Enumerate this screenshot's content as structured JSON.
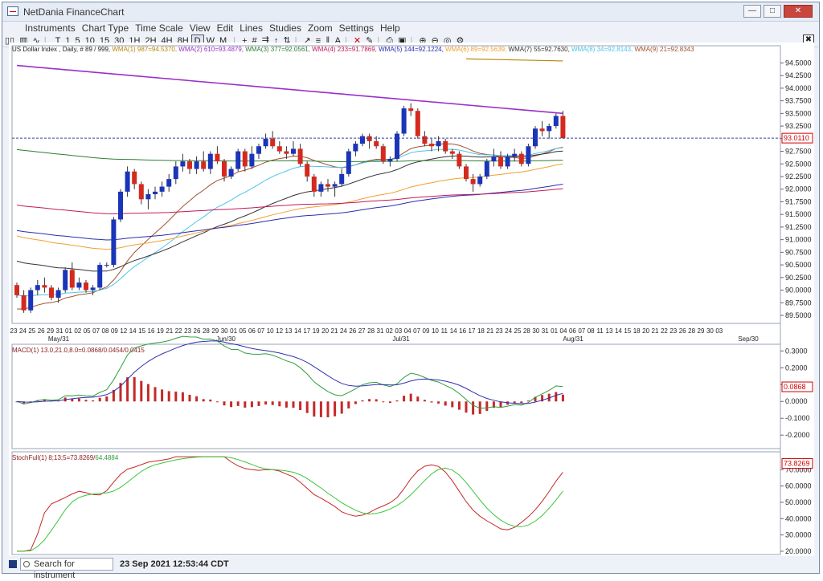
{
  "window": {
    "title": "NetDania FinanceChart"
  },
  "menu": [
    "Instruments",
    "Chart Type",
    "Time Scale",
    "View",
    "Edit",
    "Lines",
    "Studies",
    "Zoom",
    "Settings",
    "Help"
  ],
  "toolbar": [
    "T",
    "1",
    "5",
    "10",
    "15",
    "30",
    "1H",
    "2H",
    "4H",
    "8H",
    "D",
    "W",
    "M"
  ],
  "toolbar_selected": "D",
  "main_legend": {
    "instrument": "US Dollar Index , Daily, # 89 / 999,",
    "items": [
      {
        "text": "WMA(1) 987=94.5370,",
        "color": "#b8860b"
      },
      {
        "text": "WMA(2) 610=93.4879,",
        "color": "#9b30c8"
      },
      {
        "text": "WMA(3) 377=92.0561,",
        "color": "#2e7d32"
      },
      {
        "text": "WMA(4) 233=91.7869,",
        "color": "#c2185b"
      },
      {
        "text": "WMA(5) 144=92.1224,",
        "color": "#2b2bb0"
      },
      {
        "text": "WMA(6) 89=92.5639,",
        "color": "#f0a030"
      },
      {
        "text": "WMA(7) 55=92.7630,",
        "color": "#333333"
      },
      {
        "text": "WMA(8) 34=92.8143,",
        "color": "#4fc3e8"
      },
      {
        "text": "WMA(9) 21=92.8343",
        "color": "#a0522d"
      }
    ]
  },
  "price_axis": {
    "labels": [
      "94.5000",
      "94.2500",
      "94.0000",
      "93.7500",
      "93.5000",
      "93.2500",
      "93.0000",
      "92.7500",
      "92.5000",
      "92.2500",
      "92.0000",
      "91.7500",
      "91.5000",
      "91.2500",
      "91.0000",
      "90.7500",
      "90.5000",
      "90.2500",
      "90.0000",
      "89.7500",
      "89.5000"
    ],
    "current": "93.0110"
  },
  "date_axis": {
    "days": [
      "23",
      "24",
      "25",
      "26",
      "29",
      "31",
      "01",
      "02",
      "05",
      "07",
      "08",
      "09",
      "12",
      "14",
      "15",
      "16",
      "19",
      "21",
      "22",
      "23",
      "26",
      "28",
      "29",
      "30",
      "01",
      "05",
      "06",
      "07",
      "10",
      "12",
      "13",
      "14",
      "17",
      "19",
      "20",
      "21",
      "24",
      "26",
      "27",
      "28",
      "31",
      "02",
      "03",
      "04",
      "07",
      "09",
      "10",
      "11",
      "14",
      "16",
      "17",
      "18",
      "21",
      "23",
      "24",
      "25",
      "28",
      "30",
      "31",
      "01",
      "04",
      "06",
      "07",
      "08",
      "11",
      "13",
      "14",
      "15",
      "18",
      "20",
      "21",
      "22",
      "23",
      "26",
      "28",
      "29",
      "30",
      "03"
    ],
    "months": [
      "May/31",
      "Jun/30",
      "Jul/31",
      "Aug/31",
      "Sep/30"
    ]
  },
  "macd": {
    "legend": "MACD(1) 13.0,21.0,8.0=0.0868/0.0454/0.0415",
    "labels": [
      "0.3000",
      "0.2000",
      "0.1000",
      "0.0000",
      "-0.1000",
      "-0.2000"
    ],
    "current": "0.0868"
  },
  "stoch": {
    "legend_a": "StochFull(1) 8;13;5=73.8269/",
    "legend_b": "64.4884",
    "labels": [
      "70.0000",
      "60.0000",
      "50.0000",
      "40.0000",
      "30.0000",
      "20.0000"
    ],
    "current": "73.8269"
  },
  "status": {
    "search_placeholder": "Search for instrument",
    "time": "23 Sep 2021 12:53:44 CDT"
  },
  "chart_data": {
    "type": "candlestick",
    "ohlc": [
      [
        90.1,
        90.15,
        89.85,
        89.9
      ],
      [
        89.9,
        90.0,
        89.55,
        89.6
      ],
      [
        89.6,
        90.05,
        89.55,
        90.0
      ],
      [
        90.0,
        90.2,
        89.9,
        90.1
      ],
      [
        90.1,
        90.25,
        89.95,
        90.05
      ],
      [
        90.05,
        90.1,
        89.8,
        89.85
      ],
      [
        89.85,
        90.05,
        89.75,
        90.0
      ],
      [
        90.0,
        90.45,
        89.95,
        90.4
      ],
      [
        90.4,
        90.55,
        90.0,
        90.05
      ],
      [
        90.05,
        90.25,
        90.0,
        90.15
      ],
      [
        90.15,
        90.2,
        89.95,
        90.0
      ],
      [
        90.0,
        90.1,
        89.9,
        90.05
      ],
      [
        90.05,
        90.55,
        90.0,
        90.5
      ],
      [
        90.5,
        90.55,
        90.45,
        90.5
      ],
      [
        90.5,
        91.45,
        90.45,
        91.4
      ],
      [
        91.4,
        92.0,
        91.35,
        91.95
      ],
      [
        91.95,
        92.45,
        91.85,
        92.35
      ],
      [
        92.35,
        92.4,
        92.0,
        92.1
      ],
      [
        92.1,
        92.15,
        91.7,
        91.8
      ],
      [
        91.8,
        92.0,
        91.6,
        91.9
      ],
      [
        91.9,
        92.05,
        91.8,
        91.95
      ],
      [
        91.95,
        92.15,
        91.85,
        92.05
      ],
      [
        92.05,
        92.3,
        91.95,
        92.2
      ],
      [
        92.2,
        92.55,
        92.1,
        92.45
      ],
      [
        92.45,
        92.7,
        92.35,
        92.55
      ],
      [
        92.55,
        92.6,
        92.3,
        92.4
      ],
      [
        92.4,
        92.65,
        92.3,
        92.55
      ],
      [
        92.55,
        92.75,
        92.35,
        92.4
      ],
      [
        92.4,
        92.75,
        92.3,
        92.7
      ],
      [
        92.7,
        92.85,
        92.5,
        92.55
      ],
      [
        92.55,
        92.6,
        92.15,
        92.25
      ],
      [
        92.25,
        92.45,
        92.2,
        92.4
      ],
      [
        92.4,
        92.8,
        92.35,
        92.75
      ],
      [
        92.75,
        92.8,
        92.35,
        92.45
      ],
      [
        92.45,
        92.85,
        92.4,
        92.7
      ],
      [
        92.7,
        92.9,
        92.6,
        92.85
      ],
      [
        92.85,
        93.1,
        92.8,
        93.0
      ],
      [
        93.0,
        93.15,
        92.8,
        92.85
      ],
      [
        92.85,
        92.95,
        92.7,
        92.75
      ],
      [
        92.75,
        92.85,
        92.6,
        92.7
      ],
      [
        92.7,
        92.95,
        92.65,
        92.8
      ],
      [
        92.8,
        92.9,
        92.45,
        92.5
      ],
      [
        92.5,
        92.55,
        92.15,
        92.25
      ],
      [
        92.25,
        92.3,
        91.85,
        91.95
      ],
      [
        91.95,
        92.15,
        91.85,
        92.1
      ],
      [
        92.1,
        92.2,
        91.95,
        92.05
      ],
      [
        92.05,
        92.15,
        91.85,
        92.1
      ],
      [
        92.1,
        92.4,
        92.05,
        92.3
      ],
      [
        92.3,
        92.8,
        92.25,
        92.75
      ],
      [
        92.75,
        92.95,
        92.65,
        92.9
      ],
      [
        92.9,
        93.1,
        92.85,
        93.05
      ],
      [
        93.05,
        93.1,
        92.8,
        92.95
      ],
      [
        92.95,
        93.05,
        92.8,
        92.85
      ],
      [
        92.85,
        92.9,
        92.5,
        92.55
      ],
      [
        92.55,
        92.65,
        92.45,
        92.6
      ],
      [
        92.6,
        93.15,
        92.55,
        93.1
      ],
      [
        93.1,
        93.65,
        93.05,
        93.6
      ],
      [
        93.6,
        93.7,
        93.45,
        93.55
      ],
      [
        93.55,
        93.6,
        93.0,
        93.05
      ],
      [
        93.05,
        93.15,
        92.85,
        92.9
      ],
      [
        92.9,
        93.0,
        92.75,
        92.85
      ],
      [
        92.85,
        93.05,
        92.75,
        92.95
      ],
      [
        92.95,
        93.0,
        92.7,
        92.75
      ],
      [
        92.75,
        92.8,
        92.6,
        92.7
      ],
      [
        92.7,
        92.75,
        92.4,
        92.45
      ],
      [
        92.45,
        92.5,
        92.15,
        92.2
      ],
      [
        92.2,
        92.3,
        91.95,
        92.1
      ],
      [
        92.1,
        92.3,
        92.05,
        92.25
      ],
      [
        92.25,
        92.6,
        92.2,
        92.55
      ],
      [
        92.55,
        92.8,
        92.45,
        92.65
      ],
      [
        92.65,
        92.75,
        92.4,
        92.45
      ],
      [
        92.45,
        92.7,
        92.4,
        92.65
      ],
      [
        92.65,
        92.8,
        92.55,
        92.7
      ],
      [
        92.7,
        92.75,
        92.45,
        92.5
      ],
      [
        92.5,
        92.9,
        92.45,
        92.85
      ],
      [
        92.85,
        93.25,
        92.8,
        93.2
      ],
      [
        93.2,
        93.35,
        93.05,
        93.15
      ],
      [
        93.15,
        93.3,
        93.0,
        93.25
      ],
      [
        93.25,
        93.5,
        93.2,
        93.45
      ],
      [
        93.45,
        93.55,
        93.0,
        93.01
      ]
    ],
    "ylim": [
      89.5,
      94.65
    ],
    "macd_ylim": [
      -0.28,
      0.33
    ],
    "stoch_ylim": [
      18,
      80
    ]
  }
}
